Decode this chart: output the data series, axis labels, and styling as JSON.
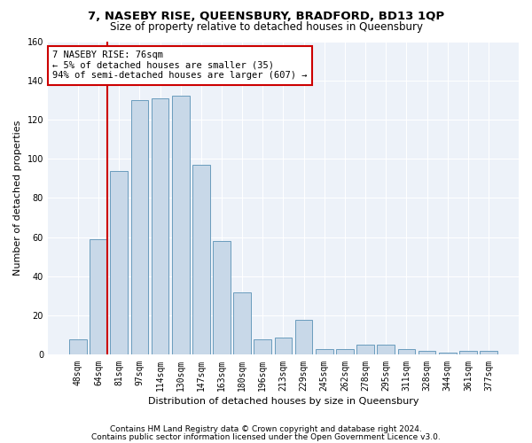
{
  "title1": "7, NASEBY RISE, QUEENSBURY, BRADFORD, BD13 1QP",
  "title2": "Size of property relative to detached houses in Queensbury",
  "xlabel": "Distribution of detached houses by size in Queensbury",
  "ylabel": "Number of detached properties",
  "footnote1": "Contains HM Land Registry data © Crown copyright and database right 2024.",
  "footnote2": "Contains public sector information licensed under the Open Government Licence v3.0.",
  "annotation_title": "7 NASEBY RISE: 76sqm",
  "annotation_line2": "← 5% of detached houses are smaller (35)",
  "annotation_line3": "94% of semi-detached houses are larger (607) →",
  "bar_color": "#c8d8e8",
  "bar_edge_color": "#6a9cbd",
  "highlight_color": "#cc0000",
  "categories": [
    "48sqm",
    "64sqm",
    "81sqm",
    "97sqm",
    "114sqm",
    "130sqm",
    "147sqm",
    "163sqm",
    "180sqm",
    "196sqm",
    "213sqm",
    "229sqm",
    "245sqm",
    "262sqm",
    "278sqm",
    "295sqm",
    "311sqm",
    "328sqm",
    "344sqm",
    "361sqm",
    "377sqm"
  ],
  "values": [
    8,
    59,
    94,
    130,
    131,
    132,
    97,
    58,
    32,
    8,
    9,
    18,
    3,
    3,
    5,
    5,
    3,
    2,
    1,
    2,
    2
  ],
  "vline_x": 1.42,
  "ylim": [
    0,
    160
  ],
  "yticks": [
    0,
    20,
    40,
    60,
    80,
    100,
    120,
    140,
    160
  ],
  "title_fontsize": 9.5,
  "subtitle_fontsize": 8.5,
  "axis_label_fontsize": 8,
  "tick_fontsize": 7,
  "annotation_fontsize": 7.5,
  "footnote_fontsize": 6.5,
  "bg_color": "#edf2f9"
}
